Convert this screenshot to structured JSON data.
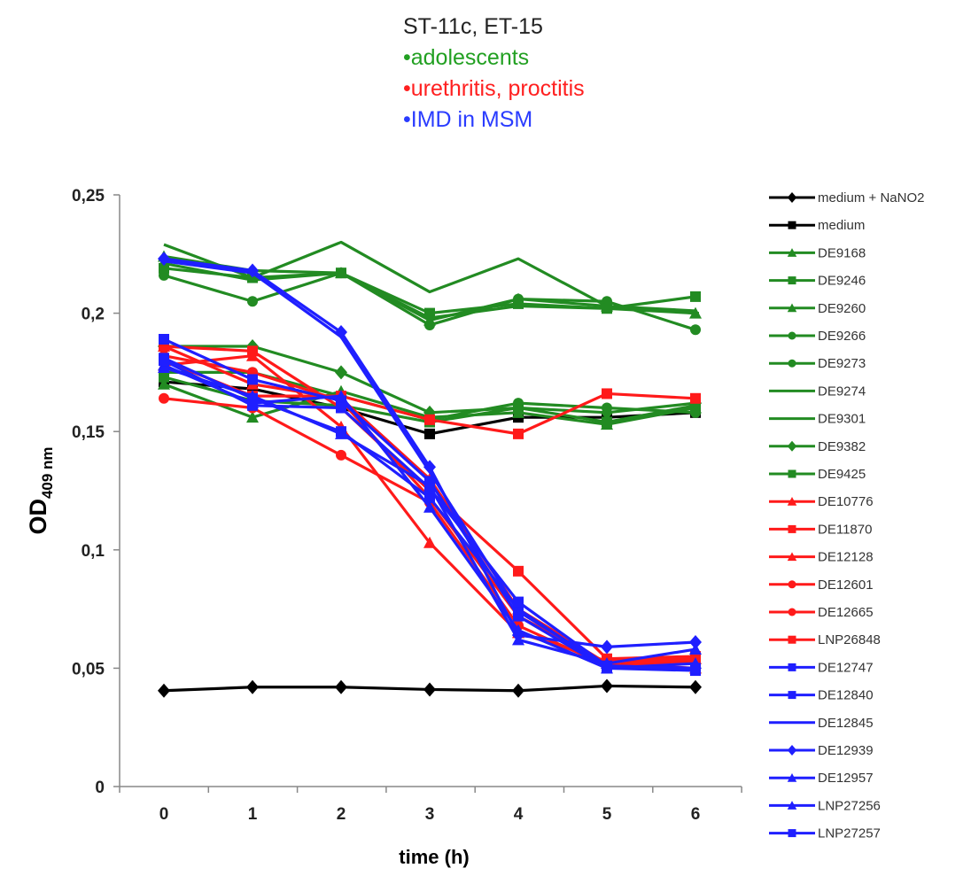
{
  "chart_data": {
    "type": "line",
    "title": "ST-11c, ET-15",
    "subtitle_lines": [
      {
        "text": "•adolescents",
        "color": "#22a022"
      },
      {
        "text": "•urethritis, proctitis",
        "color": "#ff2020"
      },
      {
        "text": "•IMD in MSM",
        "color": "#2a3cff"
      }
    ],
    "xlabel": "time (h)",
    "ylabel_main": "OD",
    "ylabel_sub": "409 nm",
    "x": [
      0,
      1,
      2,
      3,
      4,
      5,
      6
    ],
    "ylim": [
      0,
      0.25
    ],
    "yticks": [
      0,
      0.05,
      0.1,
      0.15,
      0.2,
      0.25
    ],
    "ytick_labels": [
      "0",
      "0,05",
      "0,1",
      "0,15",
      "0,2",
      "0,25"
    ],
    "xtick_labels": [
      "0",
      "1",
      "2",
      "3",
      "4",
      "5",
      "6"
    ],
    "legend_position": "right",
    "series": [
      {
        "name": "medium + NaNO2",
        "color": "#000000",
        "marker": "diamond",
        "values": [
          0.0405,
          0.042,
          0.042,
          0.041,
          0.0405,
          0.0425,
          0.042
        ]
      },
      {
        "name": "medium",
        "color": "#000000",
        "marker": "square",
        "values": [
          0.171,
          0.168,
          0.16,
          0.149,
          0.156,
          0.156,
          0.158
        ]
      },
      {
        "name": "DE9168",
        "color": "#228b22",
        "marker": "triangle",
        "values": [
          0.17,
          0.156,
          0.167,
          0.156,
          0.158,
          0.153,
          0.16
        ]
      },
      {
        "name": "DE9246",
        "color": "#228b22",
        "marker": "square",
        "values": [
          0.173,
          0.163,
          0.161,
          0.154,
          0.16,
          0.154,
          0.161
        ]
      },
      {
        "name": "DE9260",
        "color": "#228b22",
        "marker": "triangle",
        "values": [
          0.224,
          0.218,
          0.217,
          0.197,
          0.206,
          0.203,
          0.2
        ]
      },
      {
        "name": "DE9266",
        "color": "#228b22",
        "marker": "circle",
        "values": [
          0.175,
          0.175,
          0.165,
          0.155,
          0.162,
          0.16,
          0.158
        ]
      },
      {
        "name": "DE9273",
        "color": "#228b22",
        "marker": "circle",
        "values": [
          0.216,
          0.205,
          0.217,
          0.195,
          0.206,
          0.205,
          0.193
        ]
      },
      {
        "name": "DE9274",
        "color": "#228b22",
        "marker": "dash",
        "values": [
          0.221,
          0.214,
          0.217,
          0.198,
          0.203,
          0.202,
          0.2
        ]
      },
      {
        "name": "DE9301",
        "color": "#228b22",
        "marker": "none",
        "values": [
          0.229,
          0.215,
          0.23,
          0.209,
          0.223,
          0.203,
          0.201
        ]
      },
      {
        "name": "DE9382",
        "color": "#228b22",
        "marker": "diamond",
        "values": [
          0.186,
          0.186,
          0.175,
          0.158,
          0.16,
          0.158,
          0.162
        ]
      },
      {
        "name": "DE9425",
        "color": "#228b22",
        "marker": "square",
        "values": [
          0.219,
          0.215,
          0.217,
          0.2,
          0.204,
          0.202,
          0.207
        ]
      },
      {
        "name": "DE10776",
        "color": "#ff1a1a",
        "marker": "triangle",
        "values": [
          0.186,
          0.17,
          0.164,
          0.13,
          0.075,
          0.052,
          0.05
        ]
      },
      {
        "name": "DE11870",
        "color": "#ff1a1a",
        "marker": "square",
        "values": [
          0.186,
          0.184,
          0.16,
          0.125,
          0.091,
          0.054,
          0.055
        ]
      },
      {
        "name": "DE12128",
        "color": "#ff1a1a",
        "marker": "triangle",
        "values": [
          0.178,
          0.182,
          0.152,
          0.103,
          0.065,
          0.053,
          0.054
        ]
      },
      {
        "name": "DE12601",
        "color": "#ff1a1a",
        "marker": "circle",
        "values": [
          0.182,
          0.175,
          0.163,
          0.122,
          0.072,
          0.052,
          0.053
        ]
      },
      {
        "name": "DE12665",
        "color": "#ff1a1a",
        "marker": "circle",
        "values": [
          0.164,
          0.16,
          0.14,
          0.12,
          0.068,
          0.051,
          0.052
        ]
      },
      {
        "name": "LNP26848",
        "color": "#ff1a1a",
        "marker": "square",
        "values": [
          0.18,
          0.165,
          0.165,
          0.155,
          0.149,
          0.166,
          0.164
        ]
      },
      {
        "name": "DE12747",
        "color": "#1f1fff",
        "marker": "square",
        "values": [
          0.189,
          0.172,
          0.163,
          0.129,
          0.072,
          0.05,
          0.05
        ]
      },
      {
        "name": "DE12840",
        "color": "#1f1fff",
        "marker": "square",
        "values": [
          0.181,
          0.164,
          0.15,
          0.122,
          0.075,
          0.05,
          0.049
        ]
      },
      {
        "name": "DE12845",
        "color": "#1f1fff",
        "marker": "none",
        "values": [
          0.222,
          0.217,
          0.19,
          0.133,
          0.074,
          0.051,
          0.05
        ]
      },
      {
        "name": "DE12939",
        "color": "#1f1fff",
        "marker": "diamond",
        "values": [
          0.223,
          0.218,
          0.192,
          0.135,
          0.064,
          0.059,
          0.061
        ]
      },
      {
        "name": "DE12957",
        "color": "#1f1fff",
        "marker": "triangle",
        "values": [
          0.177,
          0.165,
          0.149,
          0.127,
          0.062,
          0.052,
          0.058
        ]
      },
      {
        "name": "LNP27256",
        "color": "#1f1fff",
        "marker": "triangle",
        "values": [
          0.178,
          0.162,
          0.165,
          0.118,
          0.066,
          0.05,
          0.052
        ]
      },
      {
        "name": "LNP27257",
        "color": "#1f1fff",
        "marker": "square",
        "values": [
          0.18,
          0.161,
          0.16,
          0.126,
          0.078,
          0.051,
          0.05
        ]
      }
    ]
  }
}
